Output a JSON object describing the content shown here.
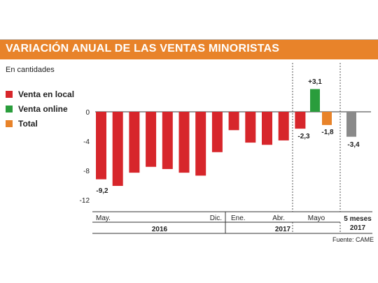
{
  "chart_data": {
    "type": "bar",
    "title": "VARIACIÓN ANUAL DE LAS VENTAS MINORISTAS",
    "subtitle": "En cantidades",
    "source": "Fuente: CAME",
    "ylim": [
      -12,
      4
    ],
    "yticks": [
      "0",
      "-4",
      "-8",
      "-12"
    ],
    "ytick_values": [
      0,
      -4,
      -8,
      -12
    ],
    "legend": [
      {
        "name": "Venta en local",
        "color": "#d7262b"
      },
      {
        "name": "Venta online",
        "color": "#2a9d3c"
      },
      {
        "name": "Total",
        "color": "#e8832a"
      }
    ],
    "series": [
      {
        "name": "Venta en local",
        "color": "#d7262b",
        "values": [
          -9.2,
          -10.1,
          -8.3,
          -7.5,
          -7.8,
          -8.3,
          -8.7,
          -5.5,
          -2.5,
          -4.2,
          -4.5,
          -3.9,
          -2.3
        ]
      },
      {
        "name": "Venta online",
        "color": "#2a9d3c",
        "values": [
          3.1
        ]
      },
      {
        "name": "Total",
        "color": "#e8832a",
        "values": [
          -1.8
        ]
      },
      {
        "name": "5 meses 2017",
        "color": "#8a8a8a",
        "values": [
          -3.4
        ]
      }
    ],
    "data_labels": [
      "-9,2",
      "-2,3",
      "+3,1",
      "-1,8",
      "-3,4"
    ],
    "x_labels": [
      "May.",
      "Dic.",
      "Ene.",
      "Abr.",
      "Mayo"
    ],
    "year_labels": [
      "2016",
      "2017"
    ],
    "summary_label": "5 meses 2017",
    "divider_color": "#555555",
    "axis_color": "#333333"
  }
}
